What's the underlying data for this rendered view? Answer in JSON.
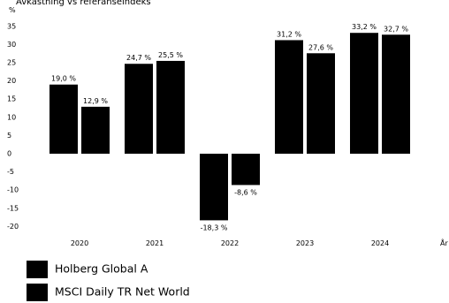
{
  "chart_data": {
    "type": "bar",
    "title": "Avkastning vs referanseindeks",
    "ylabel": "%",
    "xlabel": "År",
    "categories": [
      "2020",
      "2021",
      "2022",
      "2023",
      "2024"
    ],
    "series": [
      {
        "name": "Holberg Global A",
        "values": [
          19.0,
          24.7,
          -18.3,
          31.2,
          33.2
        ],
        "labels": [
          "19,0 %",
          "24,7 %",
          "-18,3 %",
          "31,2 %",
          "33,2 %"
        ],
        "color": "#000000"
      },
      {
        "name": "MSCI Daily TR Net World",
        "values": [
          12.9,
          25.5,
          -8.6,
          27.6,
          32.7
        ],
        "labels": [
          "12,9 %",
          "25,5 %",
          "-8,6 %",
          "27,6 %",
          "32,7 %"
        ],
        "color": "#000000"
      }
    ],
    "ylim": [
      -20,
      35
    ],
    "yticks": [
      -20,
      -15,
      -10,
      -5,
      0,
      5,
      10,
      15,
      20,
      25,
      30,
      35
    ],
    "grid": false,
    "legend_position": "bottom-left"
  }
}
